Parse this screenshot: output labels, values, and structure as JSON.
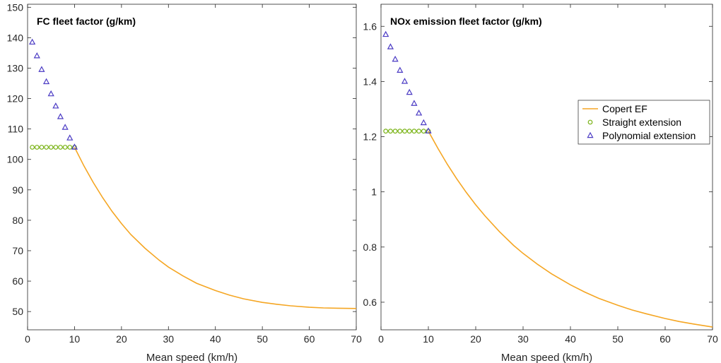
{
  "chart_data": [
    {
      "type": "line",
      "title": "FC fleet factor (g/km)",
      "xlabel": "Mean speed (km/h)",
      "ylabel": "",
      "xlim": [
        0,
        70
      ],
      "ylim": [
        44,
        151
      ],
      "x_ticks": [
        0,
        10,
        20,
        30,
        40,
        50,
        60,
        70
      ],
      "y_ticks": [
        50,
        60,
        70,
        80,
        90,
        100,
        110,
        120,
        130,
        140,
        150
      ],
      "grid": false,
      "legend": false,
      "series": [
        {
          "name": "Copert EF",
          "kind": "line",
          "color": "#f5a623",
          "x": [
            10,
            12,
            14,
            16,
            18,
            20,
            22,
            25,
            28,
            30,
            33,
            36,
            40,
            43,
            46,
            50,
            53,
            56,
            60,
            63,
            66,
            70
          ],
          "y": [
            104,
            97.9,
            92.4,
            87.4,
            82.9,
            78.9,
            75.3,
            70.8,
            66.9,
            64.6,
            61.8,
            59.3,
            56.9,
            55.4,
            54.2,
            53.0,
            52.4,
            51.9,
            51.4,
            51.2,
            51.1,
            51.0
          ]
        },
        {
          "name": "Straight extension",
          "kind": "scatter",
          "marker": "circle",
          "color": "#7ab317",
          "x": [
            1,
            2,
            3,
            4,
            5,
            6,
            7,
            8,
            9,
            10
          ],
          "y": [
            104,
            104,
            104,
            104,
            104,
            104,
            104,
            104,
            104,
            104
          ]
        },
        {
          "name": "Polynomial extension",
          "kind": "scatter",
          "marker": "triangle",
          "color": "#4b3bc4",
          "x": [
            1,
            2,
            3,
            4,
            5,
            6,
            7,
            8,
            9,
            10
          ],
          "y": [
            138.5,
            134,
            129.5,
            125.5,
            121.5,
            117.5,
            114,
            110.5,
            107,
            104
          ]
        }
      ]
    },
    {
      "type": "line",
      "title": "NOx emission fleet factor (g/km)",
      "xlabel": "Mean speed (km/h)",
      "ylabel": "",
      "xlim": [
        0,
        70
      ],
      "ylim": [
        0.5,
        1.68
      ],
      "x_ticks": [
        0,
        10,
        20,
        30,
        40,
        50,
        60,
        70
      ],
      "y_ticks": [
        0.6,
        0.8,
        1,
        1.2,
        1.4,
        1.6
      ],
      "y_tick_labels": [
        "0.6",
        "0.8",
        "1",
        "1.2",
        "1.4",
        "1.6"
      ],
      "grid": false,
      "legend": true,
      "legend_position": "right",
      "series": [
        {
          "name": "Copert EF",
          "kind": "line",
          "color": "#f5a623",
          "x": [
            10,
            12,
            14,
            16,
            18,
            20,
            22,
            25,
            28,
            30,
            33,
            36,
            40,
            43,
            46,
            50,
            53,
            56,
            60,
            63,
            66,
            70
          ],
          "y": [
            1.22,
            1.158,
            1.1,
            1.047,
            0.998,
            0.953,
            0.912,
            0.856,
            0.806,
            0.777,
            0.738,
            0.703,
            0.663,
            0.637,
            0.614,
            0.589,
            0.572,
            0.558,
            0.541,
            0.53,
            0.521,
            0.51
          ]
        },
        {
          "name": "Straight extension",
          "kind": "scatter",
          "marker": "circle",
          "color": "#7ab317",
          "x": [
            1,
            2,
            3,
            4,
            5,
            6,
            7,
            8,
            9,
            10
          ],
          "y": [
            1.22,
            1.22,
            1.22,
            1.22,
            1.22,
            1.22,
            1.22,
            1.22,
            1.22,
            1.22
          ]
        },
        {
          "name": "Polynomial extension",
          "kind": "scatter",
          "marker": "triangle",
          "color": "#4b3bc4",
          "x": [
            1,
            2,
            3,
            4,
            5,
            6,
            7,
            8,
            9,
            10
          ],
          "y": [
            1.57,
            1.525,
            1.48,
            1.44,
            1.4,
            1.36,
            1.32,
            1.285,
            1.25,
            1.22
          ]
        }
      ]
    }
  ]
}
